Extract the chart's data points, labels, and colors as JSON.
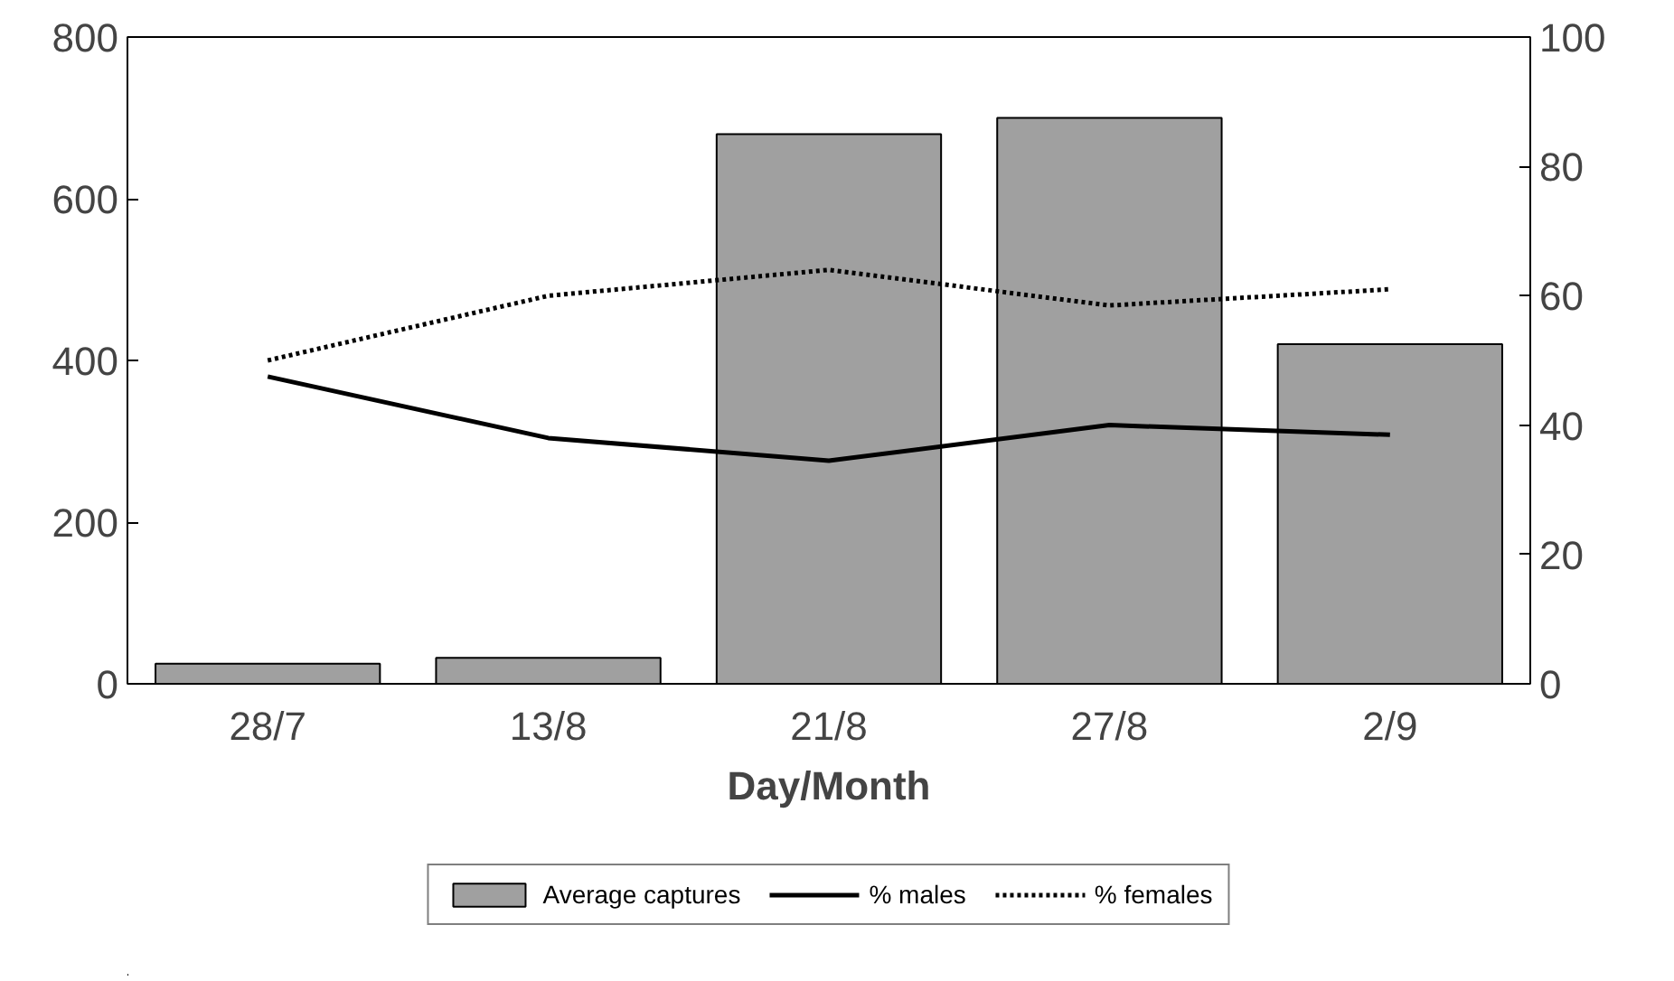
{
  "chart_data": {
    "type": "bar",
    "xlabel": "Day/Month",
    "categories": [
      "28/7",
      "13/8",
      "21/8",
      "27/8",
      "2/9"
    ],
    "series": [
      {
        "name": "Average captures",
        "color": "#a0a0a0",
        "values": [
          25,
          32,
          680,
          700,
          420
        ]
      },
      {
        "name": "% males",
        "type": "line",
        "axis": "y2",
        "color": "#000000",
        "line_style": "solid",
        "values": [
          47.5,
          38,
          34.5,
          40,
          38.5
        ]
      },
      {
        "name": "% females",
        "type": "line",
        "axis": "y2",
        "color": "#000000",
        "line_style": "dotted",
        "values": [
          50,
          60,
          64,
          58.5,
          61
        ]
      }
    ],
    "ylim": [
      0,
      800
    ],
    "yticks": [
      0,
      200,
      400,
      600,
      800
    ],
    "y2lim": [
      0,
      100
    ],
    "y2ticks": [
      0,
      20,
      40,
      60,
      80,
      100
    ],
    "grid": false,
    "legend": "bottom"
  }
}
